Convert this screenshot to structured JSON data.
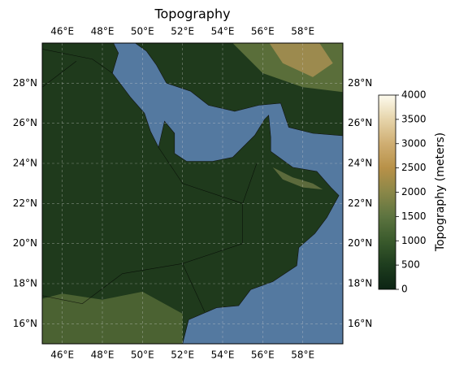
{
  "title": "Topography",
  "map": {
    "xlim": [
      45,
      60
    ],
    "ylim": [
      15,
      30
    ],
    "xticks": [
      {
        "value": 46,
        "label": "46°E"
      },
      {
        "value": 48,
        "label": "48°E"
      },
      {
        "value": 50,
        "label": "50°E"
      },
      {
        "value": 52,
        "label": "52°E"
      },
      {
        "value": 54,
        "label": "54°E"
      },
      {
        "value": 56,
        "label": "56°E"
      },
      {
        "value": 58,
        "label": "58°E"
      }
    ],
    "yticks": [
      {
        "value": 16,
        "label": "16°N"
      },
      {
        "value": 18,
        "label": "18°N"
      },
      {
        "value": 20,
        "label": "20°N"
      },
      {
        "value": 22,
        "label": "22°N"
      },
      {
        "value": 24,
        "label": "24°N"
      },
      {
        "value": 26,
        "label": "26°N"
      },
      {
        "value": 28,
        "label": "28°N"
      }
    ],
    "grid": true
  },
  "colorbar": {
    "label": "Topography (meters)",
    "lim": [
      0,
      4000
    ],
    "ticks": [
      0,
      500,
      1000,
      1500,
      2000,
      2500,
      3000,
      3500,
      4000
    ]
  }
}
